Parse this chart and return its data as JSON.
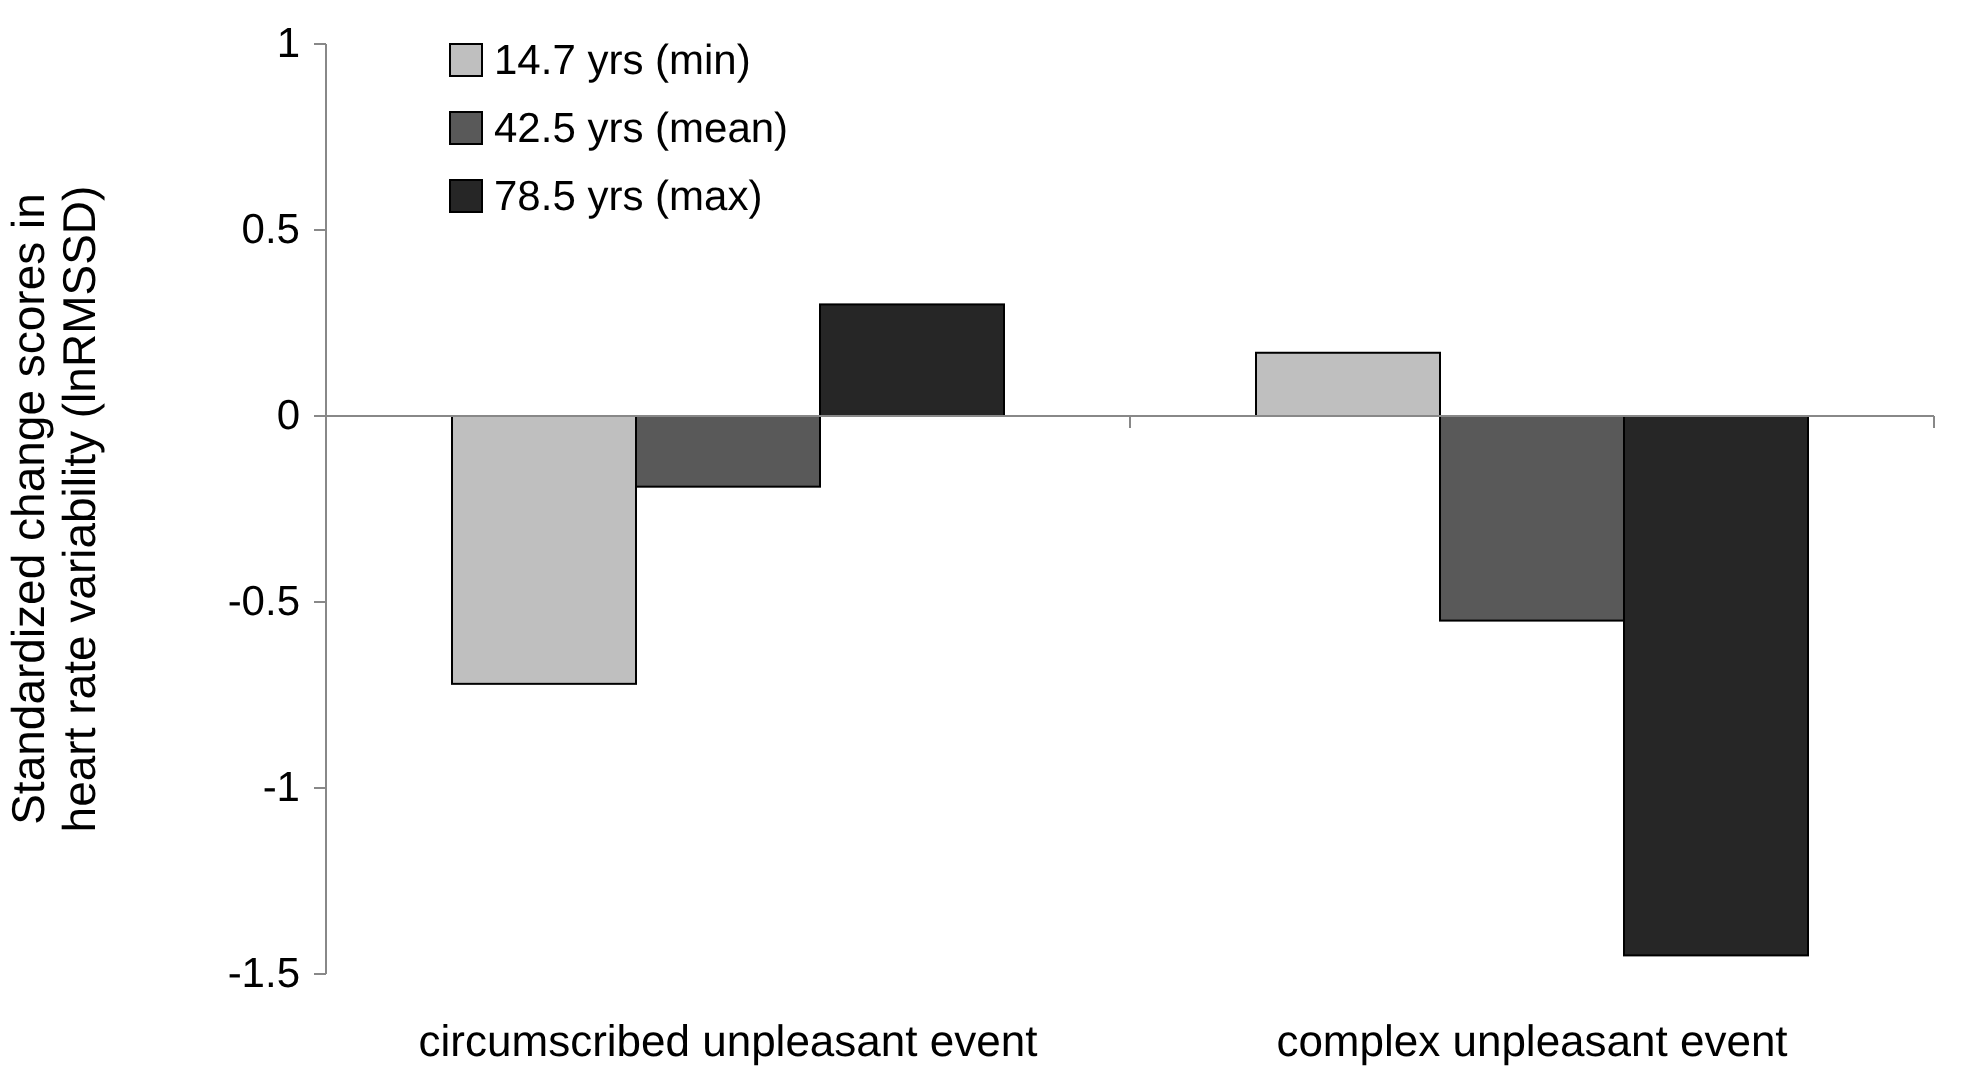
{
  "chart_data": {
    "type": "bar",
    "ylabel": "Standardized change scores in heart rate variability (lnRMSSD)",
    "categories": [
      "circumscribed unpleasant event",
      "complex unpleasant event"
    ],
    "series": [
      {
        "name": "14.7 yrs (min)",
        "color": "#bfbfbf",
        "values": [
          -0.72,
          0.17
        ]
      },
      {
        "name": "42.5 yrs (mean)",
        "color": "#595959",
        "values": [
          -0.19,
          -0.55
        ]
      },
      {
        "name": "78.5 yrs (max)",
        "color": "#262626",
        "values": [
          0.3,
          -1.45
        ]
      }
    ],
    "ylim": [
      -1.5,
      1
    ],
    "yticks": [
      -1.5,
      -1,
      -0.5,
      0,
      0.5,
      1
    ],
    "legend": "top left"
  }
}
